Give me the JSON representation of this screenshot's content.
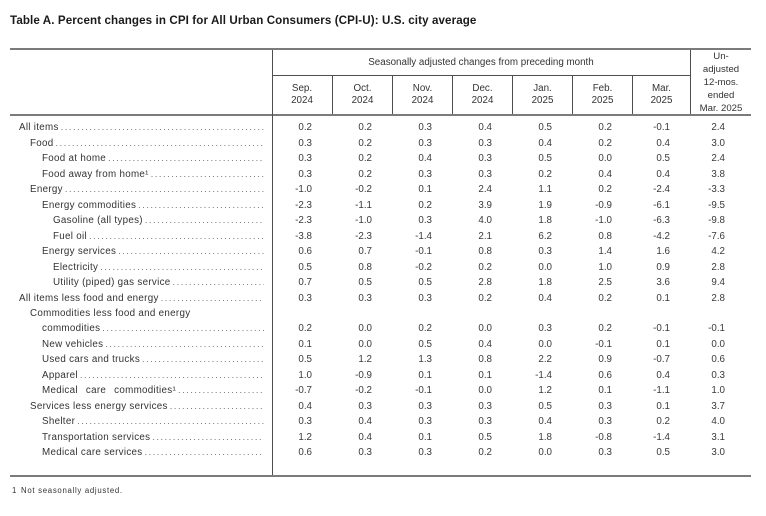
{
  "title": "Table A. Percent changes in CPI for All Urban Consumers (CPI-U): U.S. city average",
  "table": {
    "group_header": "Seasonally adjusted changes from preceding month",
    "unadjusted_header": "Un-\nadjusted\n12-mos.\nended\nMar. 2025",
    "month_columns": [
      "Sep.\n2024",
      "Oct.\n2024",
      "Nov.\n2024",
      "Dec.\n2024",
      "Jan.\n2025",
      "Feb.\n2025",
      "Mar.\n2025"
    ],
    "rows": [
      {
        "label": "All items",
        "indent": 0,
        "values": [
          "0.2",
          "0.2",
          "0.3",
          "0.4",
          "0.5",
          "0.2",
          "-0.1",
          "2.4"
        ]
      },
      {
        "label": "Food",
        "indent": 1,
        "values": [
          "0.3",
          "0.2",
          "0.3",
          "0.3",
          "0.4",
          "0.2",
          "0.4",
          "3.0"
        ]
      },
      {
        "label": "Food at home",
        "indent": 2,
        "values": [
          "0.3",
          "0.2",
          "0.4",
          "0.3",
          "0.5",
          "0.0",
          "0.5",
          "2.4"
        ]
      },
      {
        "label": "Food away from home¹",
        "indent": 2,
        "values": [
          "0.3",
          "0.2",
          "0.3",
          "0.3",
          "0.2",
          "0.4",
          "0.4",
          "3.8"
        ]
      },
      {
        "label": "Energy",
        "indent": 1,
        "values": [
          "-1.0",
          "-0.2",
          "0.1",
          "2.4",
          "1.1",
          "0.2",
          "-2.4",
          "-3.3"
        ]
      },
      {
        "label": "Energy commodities",
        "indent": 2,
        "values": [
          "-2.3",
          "-1.1",
          "0.2",
          "3.9",
          "1.9",
          "-0.9",
          "-6.1",
          "-9.5"
        ]
      },
      {
        "label": "Gasoline (all types)",
        "indent": 3,
        "values": [
          "-2.3",
          "-1.0",
          "0.3",
          "4.0",
          "1.8",
          "-1.0",
          "-6.3",
          "-9.8"
        ]
      },
      {
        "label": "Fuel oil",
        "indent": 3,
        "values": [
          "-3.8",
          "-2.3",
          "-1.4",
          "2.1",
          "6.2",
          "0.8",
          "-4.2",
          "-7.6"
        ]
      },
      {
        "label": "Energy services",
        "indent": 2,
        "values": [
          "0.6",
          "0.7",
          "-0.1",
          "0.8",
          "0.3",
          "1.4",
          "1.6",
          "4.2"
        ]
      },
      {
        "label": "Electricity",
        "indent": 3,
        "values": [
          "0.5",
          "0.8",
          "-0.2",
          "0.2",
          "0.0",
          "1.0",
          "0.9",
          "2.8"
        ]
      },
      {
        "label": "Utility (piped) gas service",
        "indent": 3,
        "values": [
          "0.7",
          "0.5",
          "0.5",
          "2.8",
          "1.8",
          "2.5",
          "3.6",
          "9.4"
        ]
      },
      {
        "label": "All items less food and energy",
        "indent": 0,
        "values": [
          "0.3",
          "0.3",
          "0.3",
          "0.2",
          "0.4",
          "0.2",
          "0.1",
          "2.8"
        ]
      },
      {
        "label": "Commodities less food and energy",
        "label2": "commodities",
        "indent": 1,
        "indent2": 2,
        "values": [
          "0.2",
          "0.0",
          "0.2",
          "0.0",
          "0.3",
          "0.2",
          "-0.1",
          "-0.1"
        ]
      },
      {
        "label": "New vehicles",
        "indent": 2,
        "values": [
          "0.1",
          "0.0",
          "0.5",
          "0.4",
          "0.0",
          "-0.1",
          "0.1",
          "0.0"
        ]
      },
      {
        "label": "Used cars and trucks",
        "indent": 2,
        "values": [
          "0.5",
          "1.2",
          "1.3",
          "0.8",
          "2.2",
          "0.9",
          "-0.7",
          "0.6"
        ]
      },
      {
        "label": "Apparel",
        "indent": 2,
        "values": [
          "1.0",
          "-0.9",
          "0.1",
          "0.1",
          "-1.4",
          "0.6",
          "0.4",
          "0.3"
        ]
      },
      {
        "label": "Medical care commodities¹",
        "indent": 2,
        "spread": true,
        "values": [
          "-0.7",
          "-0.2",
          "-0.1",
          "0.0",
          "1.2",
          "0.1",
          "-1.1",
          "1.0"
        ]
      },
      {
        "label": "Services less energy services",
        "indent": 1,
        "values": [
          "0.4",
          "0.3",
          "0.3",
          "0.3",
          "0.5",
          "0.3",
          "0.1",
          "3.7"
        ]
      },
      {
        "label": "Shelter",
        "indent": 2,
        "values": [
          "0.3",
          "0.4",
          "0.3",
          "0.3",
          "0.4",
          "0.3",
          "0.2",
          "4.0"
        ]
      },
      {
        "label": "Transportation services",
        "indent": 2,
        "values": [
          "1.2",
          "0.4",
          "0.1",
          "0.5",
          "1.8",
          "-0.8",
          "-1.4",
          "3.1"
        ]
      },
      {
        "label": "Medical care services",
        "indent": 2,
        "values": [
          "0.6",
          "0.3",
          "0.3",
          "0.2",
          "0.0",
          "0.3",
          "0.5",
          "3.0"
        ]
      }
    ]
  },
  "footnote": {
    "marker": "1",
    "text": "Not seasonally adjusted."
  }
}
